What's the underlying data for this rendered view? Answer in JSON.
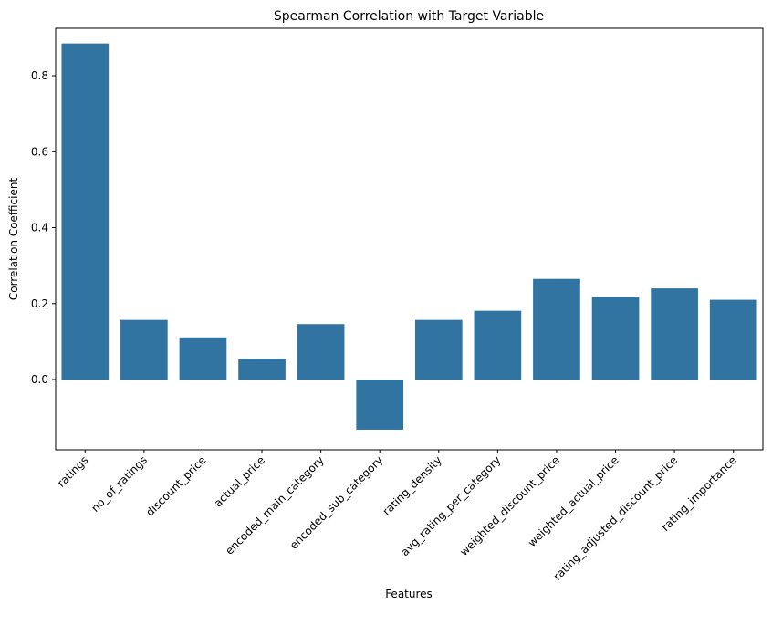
{
  "chart_data": {
    "type": "bar",
    "title": "Spearman Correlation with Target Variable",
    "xlabel": "Features",
    "ylabel": "Correlation Coefficient",
    "categories": [
      "ratings",
      "no_of_ratings",
      "discount_price",
      "actual_price",
      "encoded_main_category",
      "encoded_sub_category",
      "rating_density",
      "avg_rating_per_category",
      "weighted_discount_price",
      "weighted_actual_price",
      "rating_adjusted_discount_price",
      "rating_importance"
    ],
    "values": [
      0.885,
      0.157,
      0.111,
      0.055,
      0.146,
      -0.132,
      0.157,
      0.181,
      0.265,
      0.218,
      0.24,
      0.21
    ],
    "ylim": [
      -0.185,
      0.925
    ],
    "yticks": [
      0.0,
      0.2,
      0.4,
      0.6,
      0.8
    ],
    "ytick_labels": [
      "0.0",
      "0.2",
      "0.4",
      "0.6",
      "0.8"
    ],
    "bar_color": "#3274a1",
    "grid": false,
    "legend": false
  }
}
